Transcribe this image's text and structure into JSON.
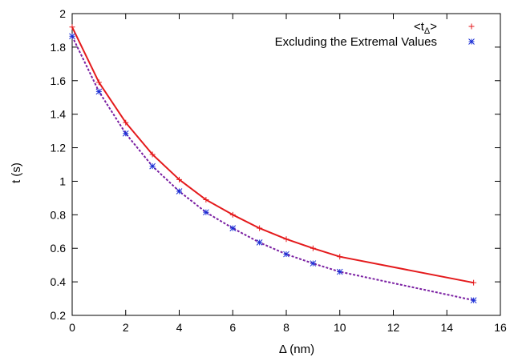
{
  "chart_data": {
    "type": "line",
    "xlabel": "Δ (nm)",
    "ylabel": "t (s)",
    "xlim": [
      0,
      16
    ],
    "ylim": [
      0.2,
      2
    ],
    "xticks": [
      0,
      2,
      4,
      6,
      8,
      10,
      12,
      14,
      16
    ],
    "yticks": [
      0.2,
      0.4,
      0.6,
      0.8,
      1,
      1.2,
      1.4,
      1.6,
      1.8,
      2
    ],
    "xtick_labels": [
      "0",
      "2",
      "4",
      "6",
      "8",
      "10",
      "12",
      "14",
      "16"
    ],
    "ytick_labels": [
      "0.2",
      "0.4",
      "0.6",
      "0.8",
      "1",
      "1.2",
      "1.4",
      "1.6",
      "1.8",
      "2"
    ],
    "grid": false,
    "legend_position": "top-right",
    "series": [
      {
        "name": "<t_Δ>",
        "color": "#e41a1c",
        "line_style": "solid",
        "marker": "plus",
        "x": [
          0,
          1,
          2,
          3,
          4,
          5,
          6,
          7,
          8,
          9,
          10,
          15
        ],
        "y": [
          1.92,
          1.59,
          1.35,
          1.16,
          1.01,
          0.89,
          0.8,
          0.72,
          0.655,
          0.6,
          0.55,
          0.395
        ]
      },
      {
        "name": "Excluding the Extremal Values",
        "color": "#7a1fa2",
        "marker_color": "#1a2fd6",
        "line_style": "dashed",
        "marker": "asterisk",
        "x": [
          0,
          1,
          2,
          3,
          4,
          5,
          6,
          7,
          8,
          9,
          10,
          15
        ],
        "y": [
          1.865,
          1.535,
          1.285,
          1.09,
          0.94,
          0.815,
          0.72,
          0.635,
          0.565,
          0.51,
          0.46,
          0.29
        ]
      }
    ]
  }
}
